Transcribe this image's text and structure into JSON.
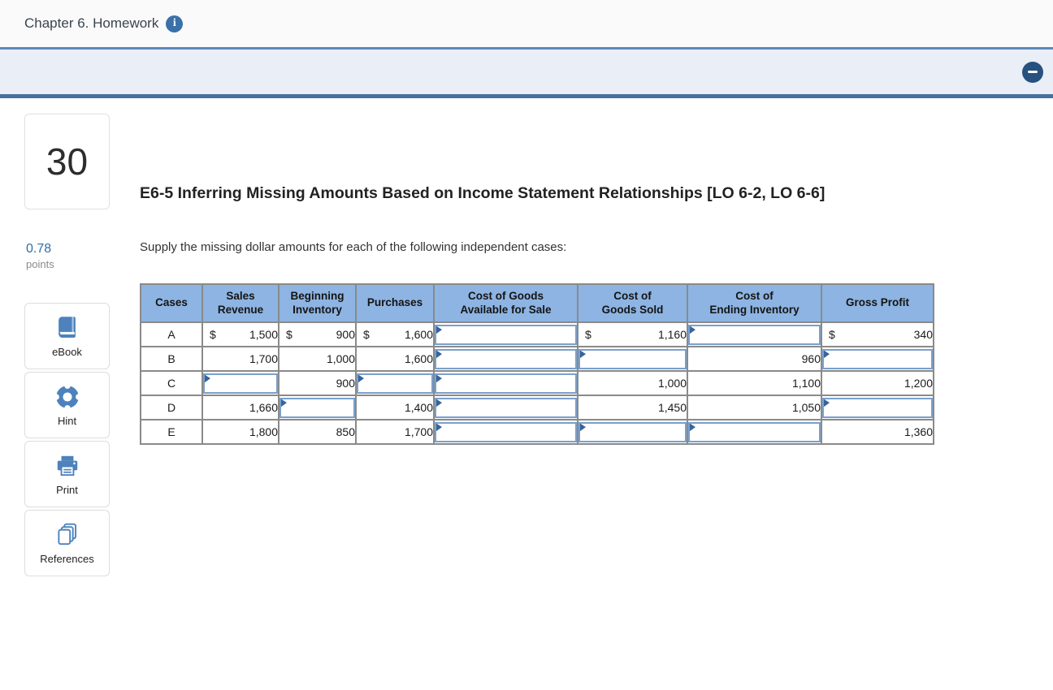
{
  "topbar": {
    "title": "Chapter 6. Homework",
    "info_icon_glyph": "i"
  },
  "sidebar": {
    "question_number": "30",
    "points_value": "0.78",
    "points_label": "points",
    "tools": [
      {
        "label": "eBook",
        "icon": "ebook-icon"
      },
      {
        "label": "Hint",
        "icon": "hint-icon"
      },
      {
        "label": "Print",
        "icon": "print-icon"
      },
      {
        "label": "References",
        "icon": "references-icon"
      }
    ]
  },
  "main": {
    "title": "E6-5 Inferring Missing Amounts Based on Income Statement Relationships [LO 6-2, LO 6-6]",
    "instruction": "Supply the missing dollar amounts for each of the following independent cases:"
  },
  "table": {
    "headers": [
      "Cases",
      "Sales\nRevenue",
      "Beginning\nInventory",
      "Purchases",
      "Cost of Goods\nAvailable for Sale",
      "Cost of\nGoods Sold",
      "Cost of\nEnding Inventory",
      "Gross Profit"
    ],
    "rows": [
      {
        "case": "A",
        "cells": [
          {
            "dollar": "$",
            "value": "1,500"
          },
          {
            "dollar": "$",
            "value": "900"
          },
          {
            "dollar": "$",
            "value": "1,600"
          },
          {
            "input": true
          },
          {
            "dollar": "$",
            "value": "1,160"
          },
          {
            "input": true
          },
          {
            "dollar": "$",
            "value": "340"
          }
        ]
      },
      {
        "case": "B",
        "cells": [
          {
            "value": "1,700"
          },
          {
            "value": "1,000"
          },
          {
            "value": "1,600"
          },
          {
            "input": true
          },
          {
            "input": true
          },
          {
            "value": "960"
          },
          {
            "input": true
          }
        ]
      },
      {
        "case": "C",
        "cells": [
          {
            "input": true
          },
          {
            "value": "900"
          },
          {
            "input": true
          },
          {
            "input": true
          },
          {
            "value": "1,000"
          },
          {
            "value": "1,100"
          },
          {
            "value": "1,200"
          }
        ]
      },
      {
        "case": "D",
        "cells": [
          {
            "value": "1,660"
          },
          {
            "input": true
          },
          {
            "value": "1,400"
          },
          {
            "input": true
          },
          {
            "value": "1,450"
          },
          {
            "value": "1,050"
          },
          {
            "input": true
          }
        ]
      },
      {
        "case": "E",
        "cells": [
          {
            "value": "1,800"
          },
          {
            "value": "850"
          },
          {
            "value": "1,700"
          },
          {
            "input": true
          },
          {
            "input": true
          },
          {
            "input": true
          },
          {
            "value": "1,360"
          }
        ]
      }
    ]
  },
  "colors": {
    "table_header_fill": "#8db4e2",
    "icon_blue": "#4d82bc",
    "band_bg": "#e9eef7",
    "info_icon_bg": "#3b71a9",
    "collapse_button_bg": "#27517e",
    "input_border": "#7aa0cc",
    "input_flag": "#35649f"
  }
}
